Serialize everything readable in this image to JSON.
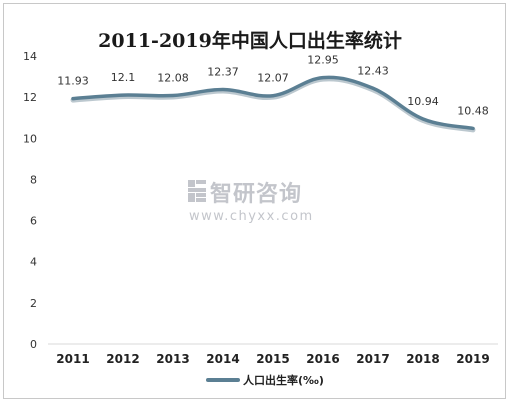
{
  "chart_data": {
    "type": "line",
    "title": "2011-2019年中国人口出生率统计",
    "categories": [
      "2011",
      "2012",
      "2013",
      "2014",
      "2015",
      "2016",
      "2017",
      "2018",
      "2019"
    ],
    "series": [
      {
        "name": "人口出生率(‰)",
        "values": [
          11.93,
          12.1,
          12.08,
          12.37,
          12.07,
          12.95,
          12.43,
          10.94,
          10.48
        ],
        "labels": [
          "11.93",
          "12.1",
          "12.08",
          "12.37",
          "12.07",
          "12.95",
          "12.43",
          "10.94",
          "10.48"
        ],
        "color": "#5b7f93"
      }
    ],
    "ylim": [
      0,
      14
    ],
    "yticks": [
      0,
      2,
      4,
      6,
      8,
      10,
      12,
      14
    ],
    "grid": false,
    "legend": "bottom-center",
    "line_style": "smooth"
  },
  "watermark": {
    "logo_icon": "chyxx-logo-icon",
    "text": "智研咨询",
    "url": "www.chyxx.com"
  }
}
